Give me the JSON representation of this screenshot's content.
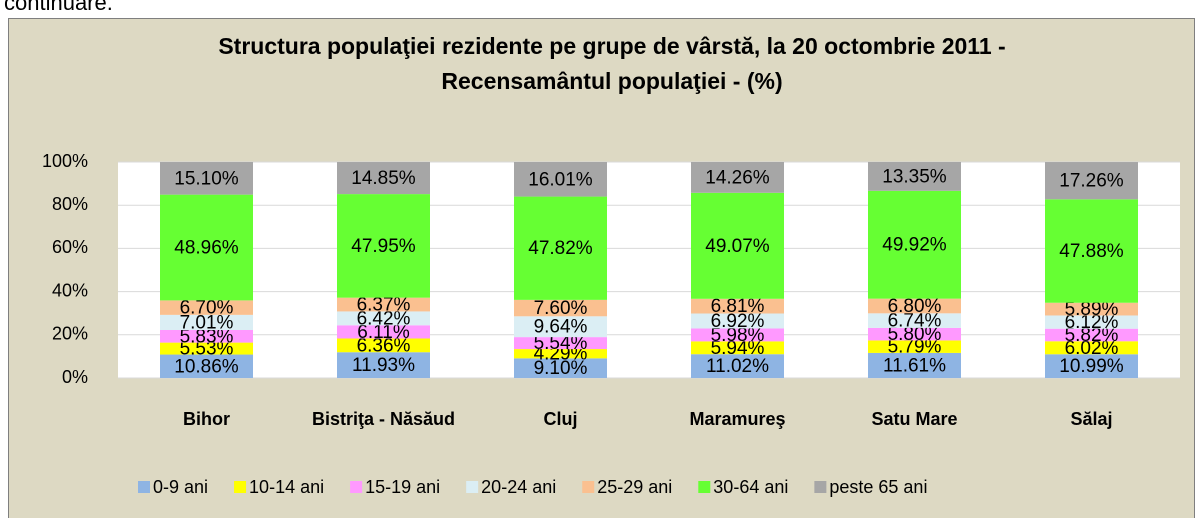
{
  "caption": "continuare.",
  "chart_data": {
    "type": "stacked_bar",
    "title": [
      "Structura populaţiei rezidente pe grupe de vârstă, la 20 octombrie 2011 -",
      "Recensamântul populaţiei -  (%)"
    ],
    "categories": [
      "Bihor",
      "Bistriţa - Năsăud",
      "Cluj",
      "Maramureş",
      "Satu Mare",
      "Sălaj"
    ],
    "ylim": [
      0,
      100
    ],
    "yticks": [
      {
        "value": 0,
        "label": "0%"
      },
      {
        "value": 20,
        "label": "20%"
      },
      {
        "value": 40,
        "label": "40%"
      },
      {
        "value": 60,
        "label": "60%"
      },
      {
        "value": 80,
        "label": "80%"
      },
      {
        "value": 100,
        "label": "100%"
      }
    ],
    "grid": true,
    "legend": "bottom",
    "series": [
      {
        "name": "0-9 ani",
        "color": "#8eb4e3",
        "values": [
          10.86,
          11.93,
          9.1,
          11.02,
          11.61,
          10.99
        ],
        "value_labels": [
          "10.86%",
          "11.93%",
          "9.10%",
          "11.02%",
          "11.61%",
          "10.99%"
        ]
      },
      {
        "name": "10-14 ani",
        "color": "#ffff00",
        "values": [
          5.53,
          6.36,
          4.29,
          5.94,
          5.79,
          6.02
        ],
        "value_labels": [
          "5.53%",
          "6.36%",
          "4.29%",
          "5.94%",
          "5.79%",
          "6.02%"
        ]
      },
      {
        "name": "15-19 ani",
        "color": "#ff99ff",
        "values": [
          5.83,
          6.11,
          5.54,
          5.98,
          5.8,
          5.82
        ],
        "value_labels": [
          "5.83%",
          "6.11%",
          "5.54%",
          "5.98%",
          "5.80%",
          "5.82%"
        ]
      },
      {
        "name": "20-24 ani",
        "color": "#dbeef4",
        "values": [
          7.01,
          6.42,
          9.64,
          6.92,
          6.74,
          6.12
        ],
        "value_labels": [
          "7.01%",
          "6.42%",
          "9.64%",
          "6.92%",
          "6.74%",
          "6.12%"
        ]
      },
      {
        "name": "25-29 ani",
        "color": "#fac090",
        "values": [
          6.7,
          6.37,
          7.6,
          6.81,
          6.8,
          5.89
        ],
        "value_labels": [
          "6.70%",
          "6.37%",
          "7.60%",
          "6.81%",
          "6.80%",
          "5.89%"
        ]
      },
      {
        "name": "30-64 ani",
        "color": "#66ff33",
        "values": [
          48.96,
          47.95,
          47.82,
          49.07,
          49.92,
          47.88
        ],
        "value_labels": [
          "48.96%",
          "47.95%",
          "47.82%",
          "49.07%",
          "49.92%",
          "47.88%"
        ]
      },
      {
        "name": "peste 65 ani",
        "color": "#a6a6a6",
        "values": [
          15.1,
          14.85,
          16.01,
          14.26,
          13.35,
          17.26
        ],
        "value_labels": [
          "15.10%",
          "14.85%",
          "16.01%",
          "14.26%",
          "13.35%",
          "17.26%"
        ]
      }
    ]
  }
}
